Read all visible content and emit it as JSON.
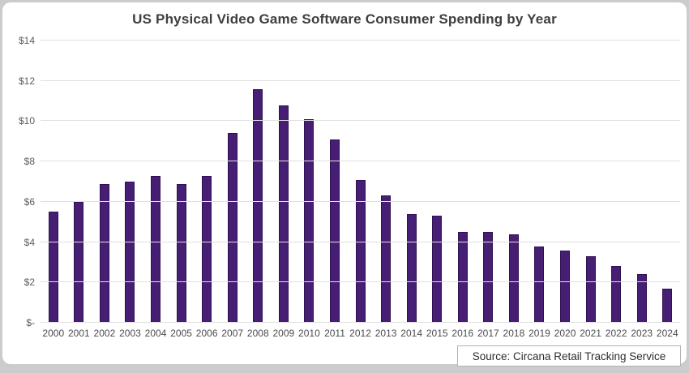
{
  "page": {
    "title": "US Physical Video Game Software Consumer Spending by Year",
    "source_label": "Source: Circana Retail Tracking Service"
  },
  "chart_data": {
    "type": "bar",
    "title": "US Physical Video Game Software Consumer Spending by Year",
    "categories": [
      "2000",
      "2001",
      "2002",
      "2003",
      "2004",
      "2005",
      "2006",
      "2007",
      "2008",
      "2009",
      "2010",
      "2011",
      "2012",
      "2013",
      "2014",
      "2015",
      "2016",
      "2017",
      "2018",
      "2019",
      "2020",
      "2021",
      "2022",
      "2023",
      "2024"
    ],
    "values": [
      5.5,
      6.0,
      6.9,
      7.0,
      7.3,
      6.9,
      7.3,
      9.4,
      11.6,
      10.8,
      10.1,
      9.1,
      7.1,
      6.3,
      5.4,
      5.3,
      4.5,
      4.5,
      4.4,
      3.8,
      3.6,
      3.3,
      2.8,
      2.4,
      1.7
    ],
    "xlabel": "",
    "ylabel": "",
    "ylim": [
      0,
      14
    ],
    "y_tick_values": [
      0,
      2,
      4,
      6,
      8,
      10,
      12,
      14
    ],
    "y_tick_labels": [
      "$-",
      "$2",
      "$4",
      "$6",
      "$8",
      "$10",
      "$12",
      "$14"
    ],
    "grid": true,
    "legend": "none",
    "bar_color": "#461e74",
    "source": "Source: Circana Retail Tracking Service"
  }
}
